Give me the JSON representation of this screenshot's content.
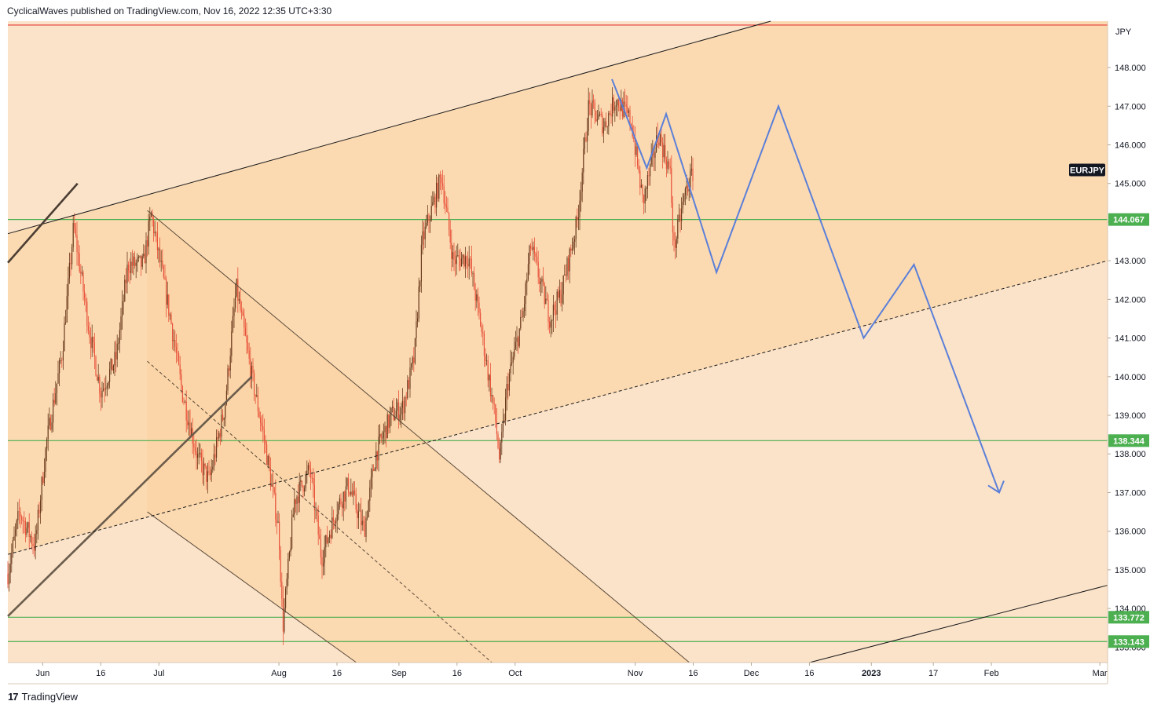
{
  "header": {
    "published_text": "CyclicalWaves published on TradingView.com, Nov 16, 2022 12:35 UTC+3:30"
  },
  "footer": {
    "logo_glyph": "17",
    "brand": "TradingView"
  },
  "colors": {
    "background": "#fbdcb4",
    "channel_fill": "#fcd6aa",
    "up_candle": "#6b3a1d",
    "down_candle": "#e8523a",
    "support_line": "#4caf50",
    "resistance_line": "#e53935",
    "projection": "#5b7fd8",
    "trendline": "#1a1a1a"
  },
  "chart_data": {
    "type": "candlestick",
    "symbol": "EURJPY",
    "currency": "JPY",
    "x_axis": {
      "start": "2022-05-23",
      "end": "2023-03-03",
      "ticks": [
        {
          "label": "Jun",
          "date": "2022-06-01",
          "bold": false
        },
        {
          "label": "16",
          "date": "2022-06-16",
          "bold": false
        },
        {
          "label": "Jul",
          "date": "2022-07-01",
          "bold": false
        },
        {
          "label": "Aug",
          "date": "2022-08-01",
          "bold": false
        },
        {
          "label": "16",
          "date": "2022-08-16",
          "bold": false
        },
        {
          "label": "Sep",
          "date": "2022-09-01",
          "bold": false
        },
        {
          "label": "16",
          "date": "2022-09-16",
          "bold": false
        },
        {
          "label": "Oct",
          "date": "2022-10-01",
          "bold": false
        },
        {
          "label": "Nov",
          "date": "2022-11-01",
          "bold": false
        },
        {
          "label": "16",
          "date": "2022-11-16",
          "bold": false
        },
        {
          "label": "Dec",
          "date": "2022-12-01",
          "bold": false
        },
        {
          "label": "16",
          "date": "2022-12-16",
          "bold": false
        },
        {
          "label": "2023",
          "date": "2023-01-01",
          "bold": true
        },
        {
          "label": "17",
          "date": "2023-01-17",
          "bold": false
        },
        {
          "label": "Feb",
          "date": "2023-02-01",
          "bold": false
        },
        {
          "label": "Mar",
          "date": "2023-03-01",
          "bold": false
        }
      ]
    },
    "y_axis": {
      "min": 132.6,
      "max": 149.2,
      "ticks": [
        "148.000",
        "147.000",
        "146.000",
        "145.000",
        "144.000",
        "143.000",
        "142.000",
        "141.000",
        "140.000",
        "139.000",
        "138.000",
        "137.000",
        "136.000",
        "135.000",
        "134.000",
        "133.000"
      ]
    },
    "horizontal_levels": [
      {
        "value": 149.1,
        "label": "",
        "color": "#e53935"
      },
      {
        "value": 144.067,
        "label": "144.067",
        "color": "#4caf50"
      },
      {
        "value": 138.344,
        "label": "138.344",
        "color": "#4caf50"
      },
      {
        "value": 133.772,
        "label": "133.772",
        "color": "#4caf50"
      },
      {
        "value": 133.143,
        "label": "133.143",
        "color": "#4caf50"
      }
    ],
    "symbol_tag_value": 145.35,
    "close_path": [
      [
        "2022-05-23",
        134.9
      ],
      [
        "2022-05-26",
        136.5
      ],
      [
        "2022-05-30",
        135.6
      ],
      [
        "2022-06-02",
        138.3
      ],
      [
        "2022-06-06",
        140.6
      ],
      [
        "2022-06-09",
        143.9
      ],
      [
        "2022-06-13",
        141.2
      ],
      [
        "2022-06-16",
        139.6
      ],
      [
        "2022-06-20",
        140.5
      ],
      [
        "2022-06-23",
        142.9
      ],
      [
        "2022-06-27",
        142.9
      ],
      [
        "2022-06-29",
        144.2
      ],
      [
        "2022-07-04",
        141.5
      ],
      [
        "2022-07-07",
        139.6
      ],
      [
        "2022-07-11",
        137.9
      ],
      [
        "2022-07-14",
        137.3
      ],
      [
        "2022-07-18",
        139.2
      ],
      [
        "2022-07-21",
        142.3
      ],
      [
        "2022-07-25",
        140.0
      ],
      [
        "2022-07-28",
        138.5
      ],
      [
        "2022-08-01",
        136.0
      ],
      [
        "2022-08-02",
        133.5
      ],
      [
        "2022-08-05",
        136.8
      ],
      [
        "2022-08-09",
        137.6
      ],
      [
        "2022-08-12",
        135.3
      ],
      [
        "2022-08-16",
        136.6
      ],
      [
        "2022-08-19",
        137.2
      ],
      [
        "2022-08-23",
        136.0
      ],
      [
        "2022-08-26",
        138.0
      ],
      [
        "2022-08-30",
        139.0
      ],
      [
        "2022-09-02",
        139.2
      ],
      [
        "2022-09-05",
        140.5
      ],
      [
        "2022-09-07",
        143.5
      ],
      [
        "2022-09-12",
        145.2
      ],
      [
        "2022-09-15",
        143.0
      ],
      [
        "2022-09-19",
        143.1
      ],
      [
        "2022-09-22",
        141.4
      ],
      [
        "2022-09-26",
        138.8
      ],
      [
        "2022-09-27",
        137.8
      ],
      [
        "2022-09-29",
        139.8
      ],
      [
        "2022-10-03",
        141.6
      ],
      [
        "2022-10-05",
        143.4
      ],
      [
        "2022-10-10",
        141.5
      ],
      [
        "2022-10-13",
        142.2
      ],
      [
        "2022-10-17",
        144.0
      ],
      [
        "2022-10-20",
        147.0
      ],
      [
        "2022-10-24",
        146.5
      ],
      [
        "2022-10-27",
        147.2
      ],
      [
        "2022-10-31",
        146.6
      ],
      [
        "2022-11-03",
        144.5
      ],
      [
        "2022-11-07",
        146.3
      ],
      [
        "2022-11-10",
        145.3
      ],
      [
        "2022-11-11",
        143.3
      ],
      [
        "2022-11-14",
        144.8
      ],
      [
        "2022-11-16",
        145.3
      ]
    ],
    "projection_path": [
      [
        "2022-10-26",
        147.7
      ],
      [
        "2022-11-04",
        145.4
      ],
      [
        "2022-11-09",
        146.8
      ],
      [
        "2022-11-22",
        142.7
      ],
      [
        "2022-12-08",
        147.0
      ],
      [
        "2022-12-30",
        141.0
      ],
      [
        "2023-01-12",
        142.9
      ],
      [
        "2023-02-03",
        137.0
      ]
    ],
    "projection_arrow_tip": [
      "2023-02-02",
      137.1
    ],
    "trendlines": [
      {
        "from": [
          "2022-05-23",
          143.7
        ],
        "to": [
          "2022-12-06",
          149.2
        ],
        "color": "#1a1a1a",
        "width": 1,
        "dash": false
      },
      {
        "from": [
          "2022-05-23",
          142.95
        ],
        "to": [
          "2022-06-10",
          145.0
        ],
        "color": "#4b3d32",
        "width": 2.6,
        "dash": false
      },
      {
        "from": [
          "2022-05-23",
          133.8
        ],
        "to": [
          "2022-07-25",
          140.0
        ],
        "color": "#6b5c4c",
        "width": 2.6,
        "dash": false
      },
      {
        "from": [
          "2022-06-28",
          144.3
        ],
        "to": [
          "2022-11-15",
          132.6
        ],
        "color": "#5a4a3a",
        "width": 1,
        "dash": false
      },
      {
        "from": [
          "2022-06-28",
          136.5
        ],
        "to": [
          "2022-08-21",
          132.6
        ],
        "color": "#5a4a3a",
        "width": 1,
        "dash": false
      },
      {
        "from": [
          "2022-06-28",
          140.4
        ],
        "to": [
          "2022-09-25",
          132.6
        ],
        "color": "#5a4a3a",
        "width": 1,
        "dash": true
      },
      {
        "from": [
          "2022-05-23",
          135.4
        ],
        "to": [
          "2023-03-03",
          143.0
        ],
        "color": "#1a1a1a",
        "width": 1,
        "dash": true
      },
      {
        "from": [
          "2022-12-16",
          132.6
        ],
        "to": [
          "2023-03-03",
          134.6
        ],
        "color": "#1a1a1a",
        "width": 1,
        "dash": false
      }
    ]
  }
}
